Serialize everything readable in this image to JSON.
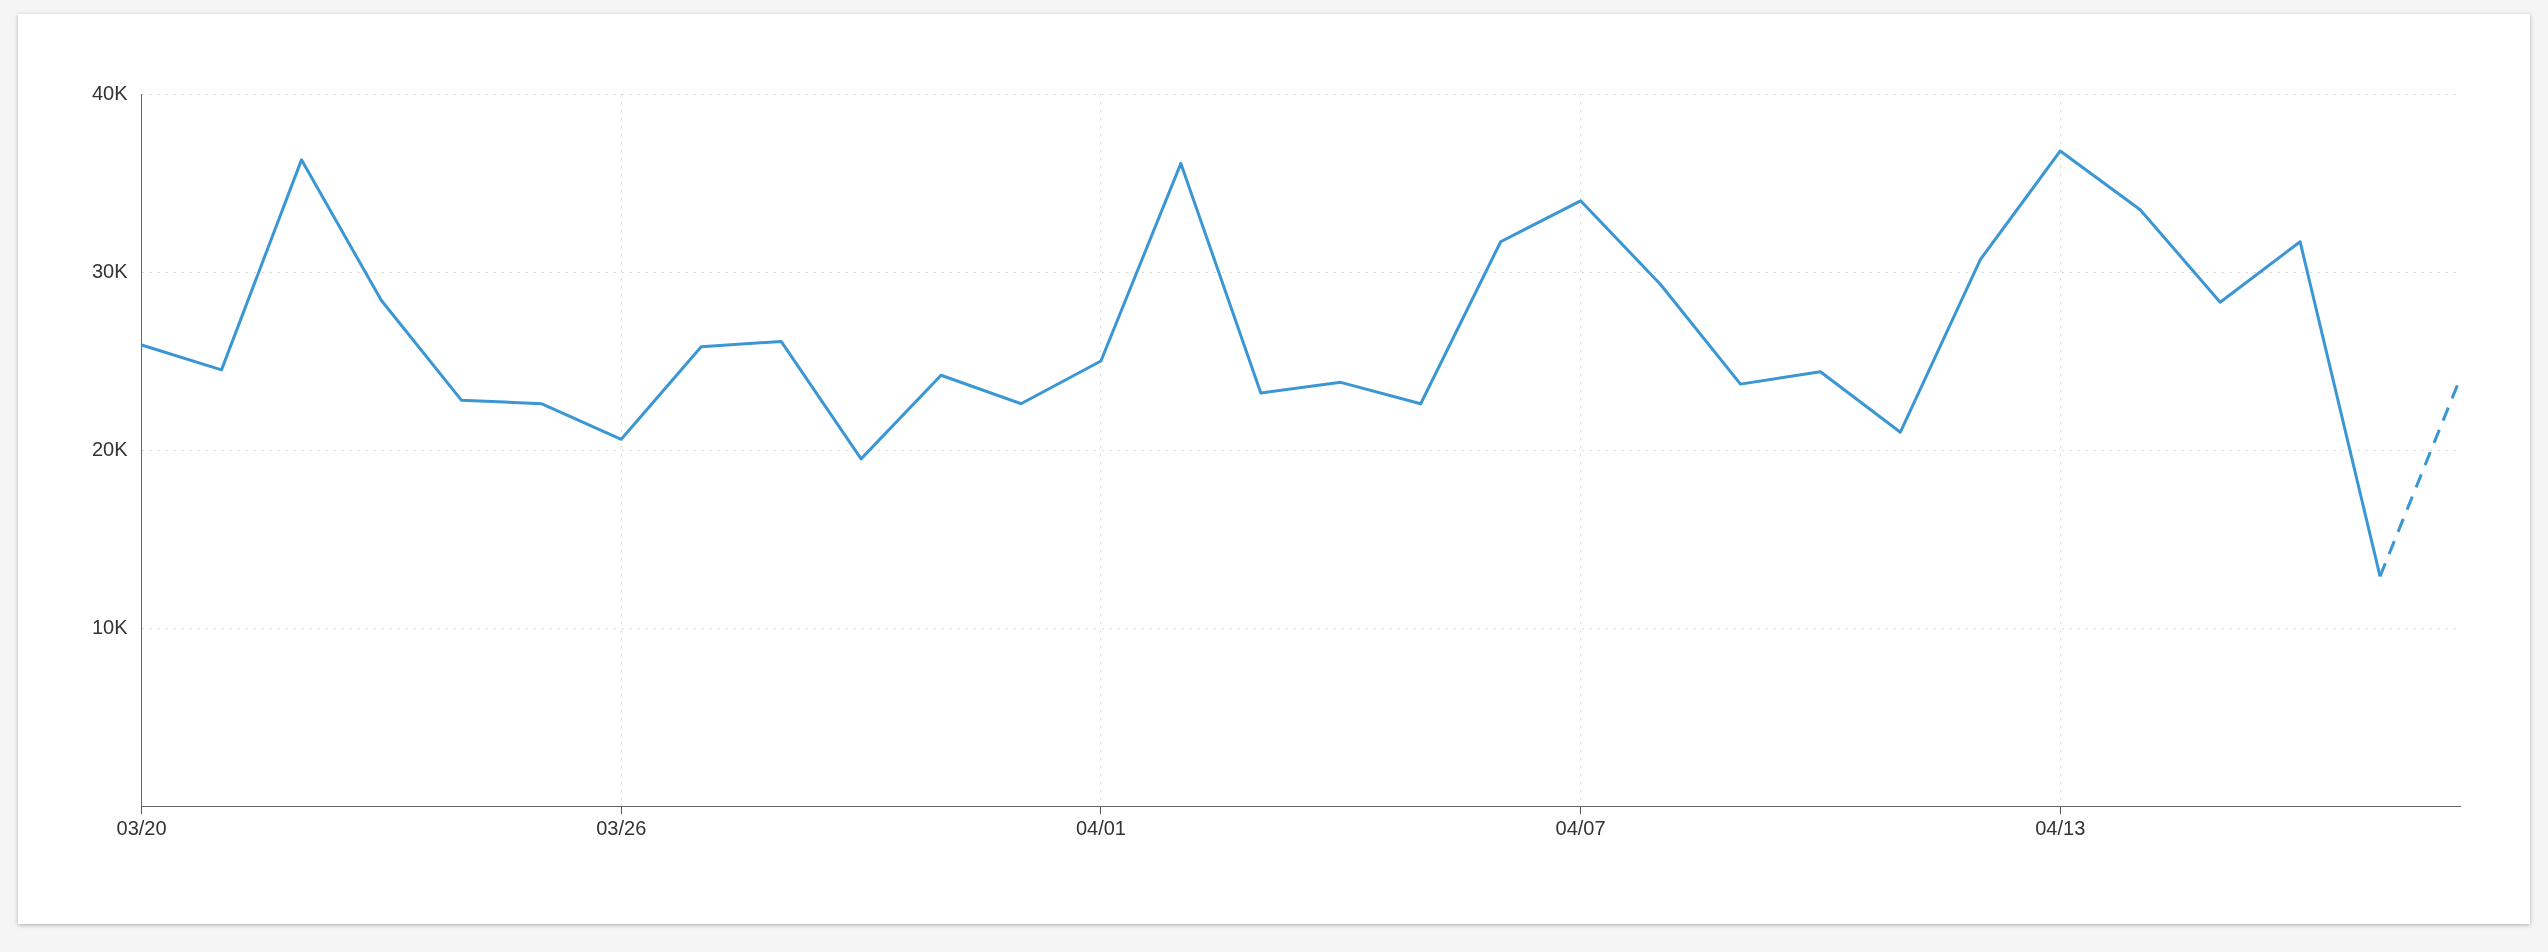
{
  "chart_data": {
    "type": "line",
    "categories": [
      "03/20",
      null,
      null,
      null,
      null,
      null,
      "03/26",
      null,
      null,
      null,
      null,
      null,
      "04/01",
      null,
      null,
      null,
      null,
      null,
      "04/07",
      null,
      null,
      null,
      null,
      null,
      "04/13",
      null,
      null,
      null,
      null,
      null
    ],
    "series": [
      {
        "color": "#3a97d4",
        "line_style": "solid",
        "values": [
          25900,
          24500,
          36300,
          28400,
          22800,
          22600,
          20600,
          25800,
          26100,
          19500,
          24200,
          22600,
          25000,
          36100,
          23200,
          23800,
          22600,
          31700,
          34000,
          29300,
          23700,
          24400,
          21000,
          30700,
          36800,
          33500,
          28300,
          31700,
          12900,
          null
        ]
      },
      {
        "color": "#3a97d4",
        "line_style": "dashed",
        "values": [
          null,
          null,
          null,
          null,
          null,
          null,
          null,
          null,
          null,
          null,
          null,
          null,
          null,
          null,
          null,
          null,
          null,
          null,
          null,
          null,
          null,
          null,
          null,
          null,
          null,
          null,
          null,
          null,
          12900,
          24000
        ]
      }
    ],
    "ylim": [
      0,
      40000
    ],
    "yticks": [
      {
        "value": 0,
        "label": null
      },
      {
        "value": 10000,
        "label": "10K"
      },
      {
        "value": 20000,
        "label": "20K"
      },
      {
        "value": 30000,
        "label": "30K"
      },
      {
        "value": 40000,
        "label": "40K"
      }
    ],
    "grid": true,
    "legend": false,
    "marker": "none"
  }
}
